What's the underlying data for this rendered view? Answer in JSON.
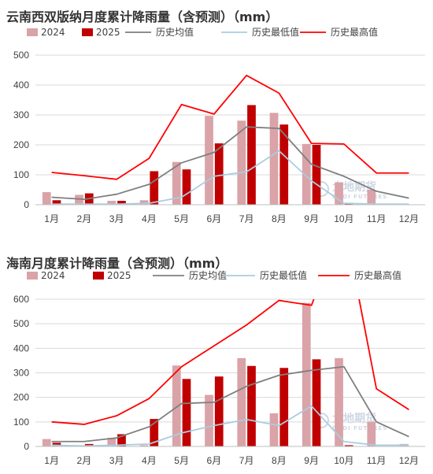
{
  "chart_data": [
    {
      "type": "bar",
      "title": "云南西双版纳月度累计降雨量（含预测）（mm）",
      "categories": [
        "1月",
        "2月",
        "3月",
        "4月",
        "5月",
        "6月",
        "7月",
        "8月",
        "9月",
        "10月",
        "11月",
        "12月"
      ],
      "ylim": [
        0,
        500
      ],
      "yticks": [
        0,
        100,
        200,
        300,
        400,
        500
      ],
      "grid": true,
      "legend_position": "top",
      "series": [
        {
          "name": "2024",
          "kind": "bar",
          "color": "#d9a3a8",
          "values": [
            42,
            33,
            13,
            15,
            143,
            297,
            281,
            307,
            203,
            75,
            50,
            null
          ]
        },
        {
          "name": "2025",
          "kind": "bar",
          "color": "#c00000",
          "values": [
            15,
            38,
            13,
            112,
            118,
            205,
            333,
            268,
            200,
            3,
            null,
            null
          ]
        },
        {
          "name": "历史均值",
          "kind": "line",
          "color": "#7f7f7f",
          "values": [
            25,
            18,
            35,
            68,
            140,
            175,
            260,
            255,
            135,
            95,
            45,
            22
          ]
        },
        {
          "name": "历史最低值",
          "kind": "line",
          "color": "#a9cde0",
          "values": [
            2,
            2,
            2,
            5,
            25,
            95,
            110,
            180,
            80,
            5,
            2,
            2
          ]
        },
        {
          "name": "历史最高值",
          "kind": "line",
          "color": "#ff0000",
          "values": [
            108,
            97,
            85,
            155,
            335,
            303,
            432,
            373,
            205,
            203,
            106,
            106
          ]
        }
      ],
      "watermark": {
        "name": "大地期货",
        "sub": "DADI FUTURES"
      }
    },
    {
      "type": "bar",
      "title": "海南月度累计降雨量（含预测）（mm）",
      "categories": [
        "1月",
        "2月",
        "3月",
        "4月",
        "5月",
        "6月",
        "7月",
        "8月",
        "9月",
        "10月",
        "11月",
        "12月"
      ],
      "ylim": [
        0,
        600
      ],
      "yticks": [
        0,
        100,
        200,
        300,
        400,
        500,
        600
      ],
      "grid": true,
      "legend_position": "top",
      "series": [
        {
          "name": "2024",
          "kind": "bar",
          "color": "#d9a3a8",
          "values": [
            30,
            5,
            35,
            5,
            330,
            210,
            360,
            135,
            585,
            360,
            100,
            10
          ]
        },
        {
          "name": "2025",
          "kind": "bar",
          "color": "#c00000",
          "values": [
            15,
            10,
            50,
            112,
            275,
            285,
            328,
            320,
            355,
            5,
            null,
            null
          ]
        },
        {
          "name": "历史均值",
          "kind": "line",
          "color": "#7f7f7f",
          "values": [
            20,
            20,
            35,
            80,
            175,
            180,
            245,
            290,
            310,
            325,
            100,
            40
          ]
        },
        {
          "name": "历史最低值",
          "kind": "line",
          "color": "#a9cde0",
          "values": [
            5,
            2,
            5,
            10,
            55,
            85,
            110,
            85,
            165,
            20,
            5,
            5
          ]
        },
        {
          "name": "历史最高值",
          "kind": "line",
          "color": "#ff0000",
          "values": [
            100,
            90,
            125,
            195,
            325,
            410,
            495,
            595,
            575,
            920,
            235,
            150
          ]
        }
      ],
      "watermark": {
        "name": "大地期货",
        "sub": "DADI FUTURES"
      }
    }
  ]
}
